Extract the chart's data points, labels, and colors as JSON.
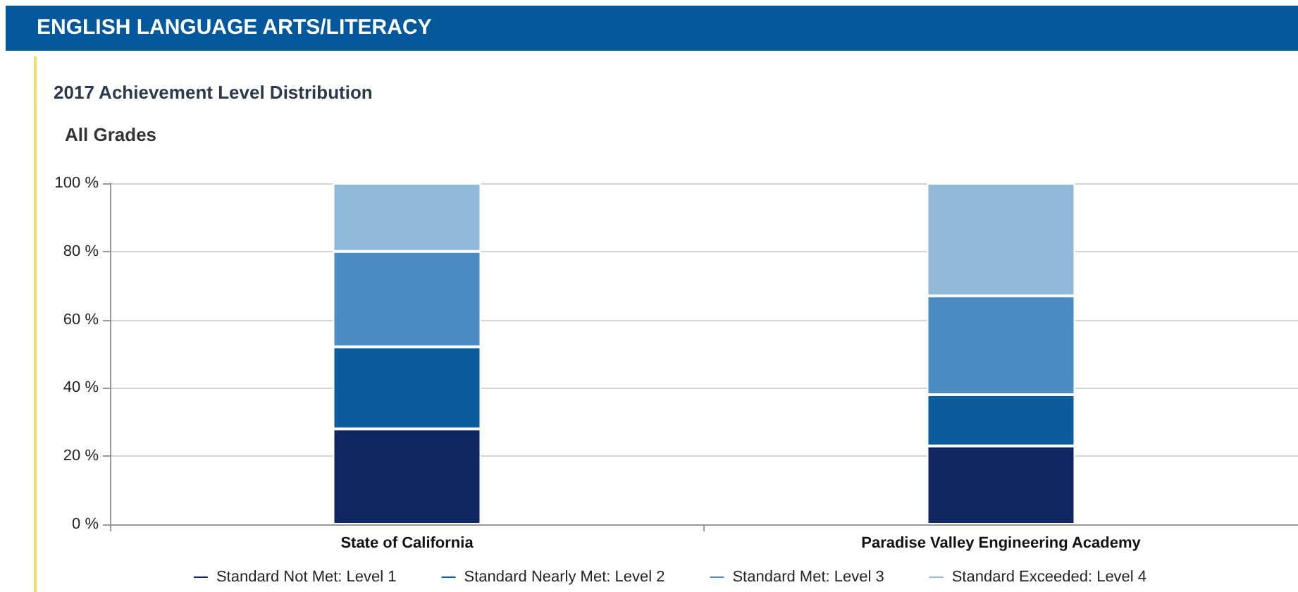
{
  "chart_data": {
    "type": "bar",
    "title": "ENGLISH LANGUAGE ARTS/LITERACY",
    "subtitle": "2017 Achievement Level Distribution",
    "annotations": [
      "All Grades"
    ],
    "categories": [
      "State of California",
      "Paradise Valley Engineering Academy"
    ],
    "series": [
      {
        "name": "Standard Not Met: Level 1",
        "color": "#0f2660",
        "values": [
          28,
          23
        ]
      },
      {
        "name": "Standard Nearly Met: Level 2",
        "color": "#0b5c9c",
        "values": [
          24,
          15
        ]
      },
      {
        "name": "Standard Met: Level 3",
        "color": "#4a8cc2",
        "values": [
          28,
          29
        ]
      },
      {
        "name": "Standard Exceeded: Level 4",
        "color": "#92b8d8",
        "values": [
          20,
          33
        ]
      }
    ],
    "stacked": true,
    "ylim": [
      0,
      100
    ],
    "yticks": [
      {
        "value": 0,
        "label": "0 %"
      },
      {
        "value": 20,
        "label": "20 %"
      },
      {
        "value": 40,
        "label": "40 %"
      },
      {
        "value": 60,
        "label": "60 %"
      },
      {
        "value": 80,
        "label": "80 %"
      },
      {
        "value": 100,
        "label": "100 %"
      }
    ],
    "grid": "y",
    "legend": "bottom"
  }
}
